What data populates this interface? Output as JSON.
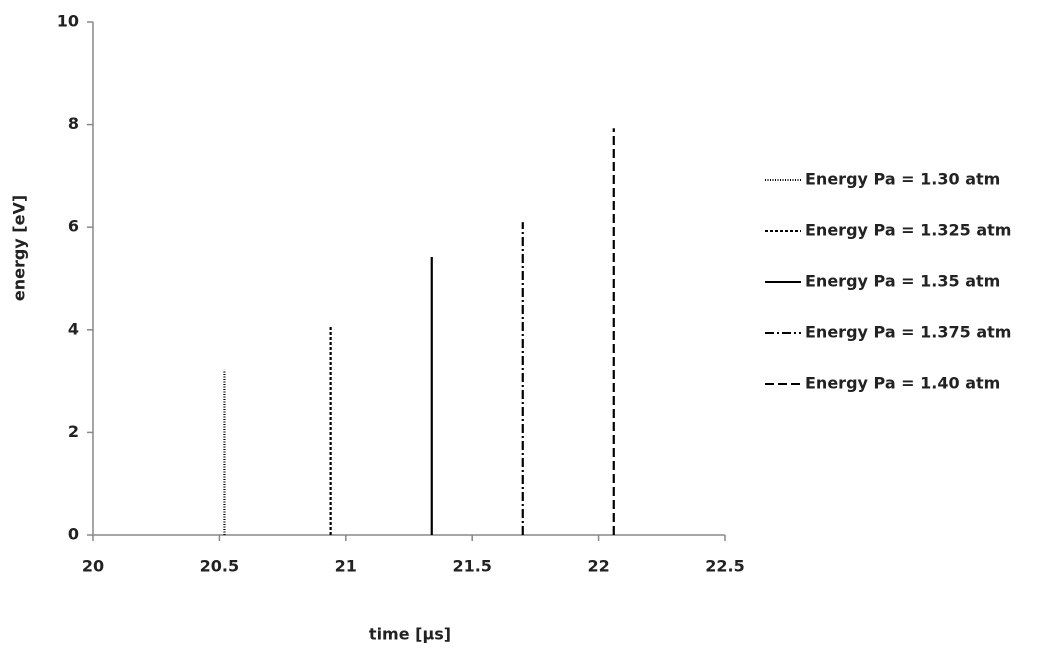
{
  "chart_data": {
    "type": "line",
    "x_label": "time [µs]",
    "y_label": "energy [eV]",
    "xlim": [
      20,
      22.5
    ],
    "xticks": [
      20,
      20.5,
      21,
      21.5,
      22,
      22.5
    ],
    "ylim": [
      0,
      10
    ],
    "yticks": [
      0,
      2,
      4,
      6,
      8,
      10
    ],
    "grid": false,
    "legend": "right",
    "series": [
      {
        "name": "Energy Pa = 1.30 atm",
        "color": "#000000",
        "dash": "1,1.5",
        "x": [
          20.52,
          20.52
        ],
        "values": [
          0,
          3.22
        ]
      },
      {
        "name": "Energy Pa = 1.325 atm",
        "color": "#000000",
        "dash": "3,2",
        "x": [
          20.94,
          20.94
        ],
        "values": [
          0,
          4.09
        ]
      },
      {
        "name": "Energy Pa = 1.35 atm",
        "color": "#000000",
        "dash": "none",
        "x": [
          21.34,
          21.34
        ],
        "values": [
          0,
          5.42
        ]
      },
      {
        "name": "Energy Pa = 1.375 atm",
        "color": "#000000",
        "dash": "9,3,2,3",
        "x": [
          21.7,
          21.7
        ],
        "values": [
          0,
          6.1
        ]
      },
      {
        "name": "Energy Pa = 1.40 atm",
        "color": "#000000",
        "dash": "9,4",
        "x": [
          22.06,
          22.06
        ],
        "values": [
          0,
          7.93
        ]
      }
    ]
  }
}
